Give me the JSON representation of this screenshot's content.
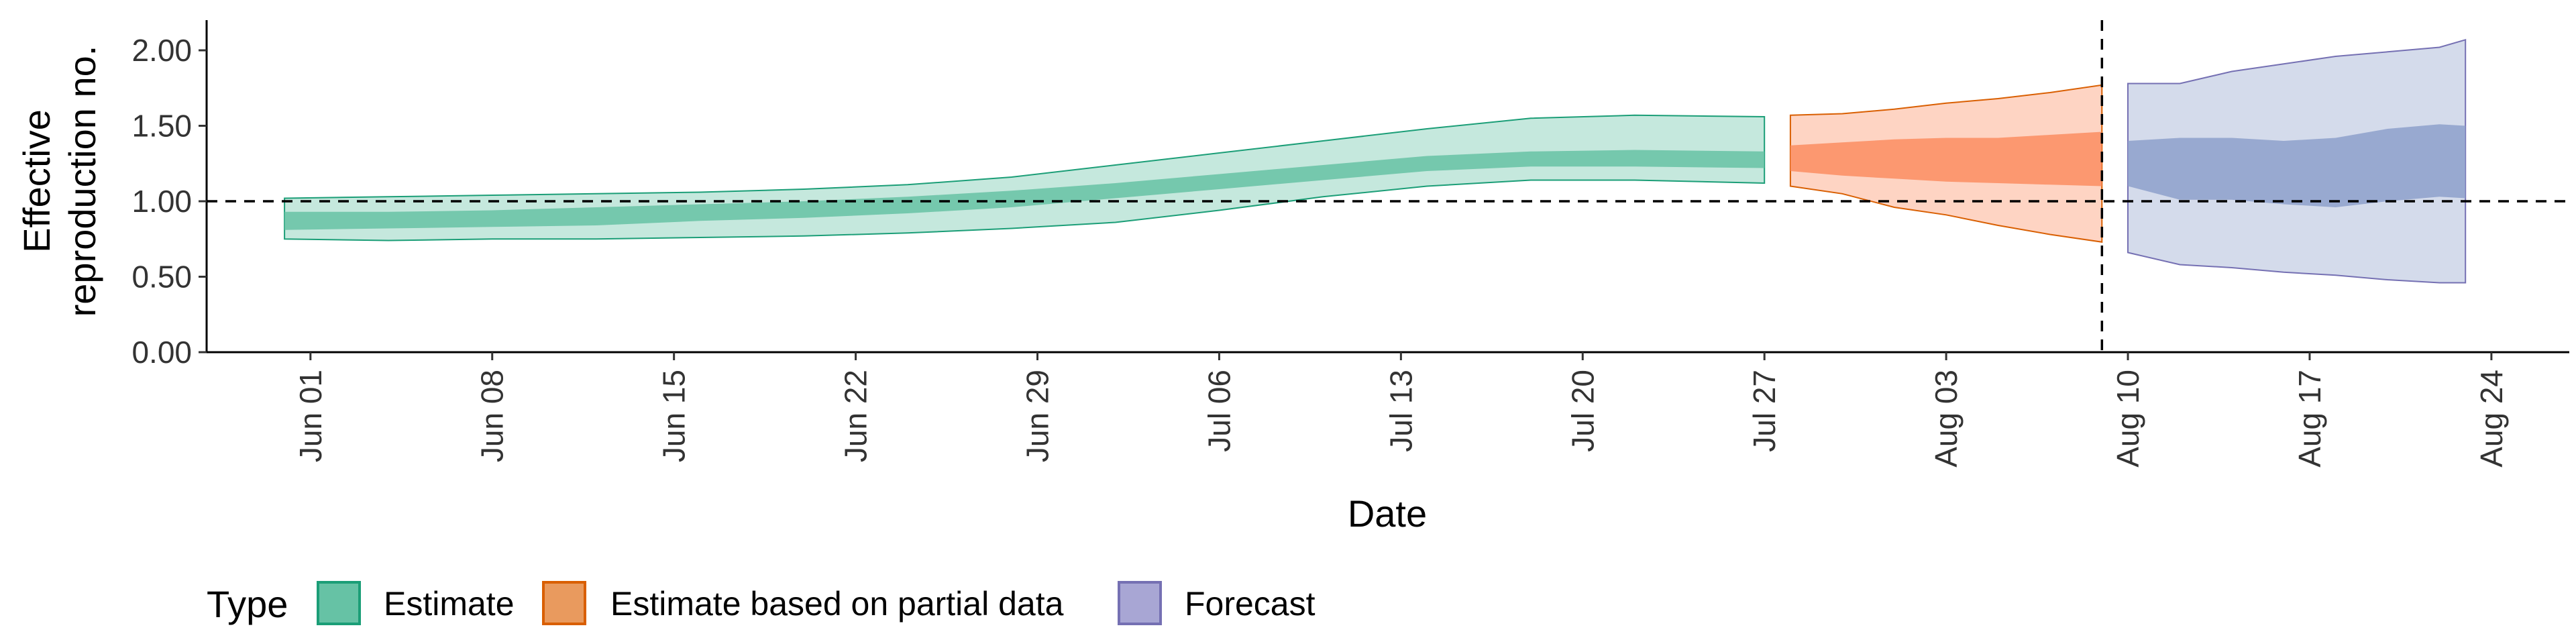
{
  "chart_data": {
    "type": "area",
    "xlabel": "Date",
    "ylabel_lines": [
      "Effective",
      "reproduction no."
    ],
    "ylim": [
      0,
      2.2
    ],
    "yticks": [
      0,
      0.5,
      1,
      1.5,
      2
    ],
    "ytick_labels": [
      "0.00",
      "0.50",
      "1.00",
      "1.50",
      "2.00"
    ],
    "xlim": [
      "2020-05-28",
      "2020-08-27"
    ],
    "xticks": [
      "2020-06-01",
      "2020-06-08",
      "2020-06-15",
      "2020-06-22",
      "2020-06-29",
      "2020-07-06",
      "2020-07-13",
      "2020-07-20",
      "2020-07-27",
      "2020-08-03",
      "2020-08-10",
      "2020-08-17",
      "2020-08-24"
    ],
    "xtick_labels": [
      "Jun 01",
      "Jun 08",
      "Jun 15",
      "Jun 22",
      "Jun 29",
      "Jul 06",
      "Jul 13",
      "Jul 20",
      "Jul 27",
      "Aug 03",
      "Aug 10",
      "Aug 17",
      "Aug 24"
    ],
    "hline": 1.0,
    "vline": "2020-08-09",
    "series": [
      {
        "name": "Estimate",
        "fill": "#66c2a5",
        "stroke": "#1b9e77",
        "x": [
          "2020-05-31",
          "2020-06-04",
          "2020-06-08",
          "2020-06-12",
          "2020-06-16",
          "2020-06-20",
          "2020-06-24",
          "2020-06-28",
          "2020-07-02",
          "2020-07-06",
          "2020-07-10",
          "2020-07-14",
          "2020-07-18",
          "2020-07-22",
          "2020-07-27"
        ],
        "outer_low": [
          0.75,
          0.74,
          0.75,
          0.75,
          0.76,
          0.77,
          0.79,
          0.82,
          0.86,
          0.94,
          1.03,
          1.1,
          1.14,
          1.14,
          1.12
        ],
        "inner_low": [
          0.81,
          0.82,
          0.83,
          0.84,
          0.87,
          0.89,
          0.92,
          0.96,
          1.02,
          1.08,
          1.14,
          1.2,
          1.23,
          1.23,
          1.22
        ],
        "inner_high": [
          0.93,
          0.93,
          0.94,
          0.96,
          0.98,
          1.0,
          1.03,
          1.07,
          1.12,
          1.18,
          1.24,
          1.3,
          1.33,
          1.34,
          1.33
        ],
        "outer_high": [
          1.02,
          1.03,
          1.04,
          1.05,
          1.06,
          1.08,
          1.11,
          1.16,
          1.24,
          1.32,
          1.4,
          1.48,
          1.55,
          1.57,
          1.56
        ]
      },
      {
        "name": "Estimate based on partial data",
        "fill": "#fc8d62",
        "stroke": "#d95f02",
        "x": [
          "2020-07-28",
          "2020-07-30",
          "2020-08-01",
          "2020-08-03",
          "2020-08-05",
          "2020-08-07",
          "2020-08-09"
        ],
        "outer_low": [
          1.1,
          1.05,
          0.96,
          0.91,
          0.84,
          0.78,
          0.73
        ],
        "inner_low": [
          1.2,
          1.17,
          1.15,
          1.13,
          1.12,
          1.11,
          1.1
        ],
        "inner_high": [
          1.37,
          1.39,
          1.41,
          1.42,
          1.42,
          1.44,
          1.46
        ],
        "outer_high": [
          1.57,
          1.58,
          1.61,
          1.65,
          1.68,
          1.72,
          1.77
        ]
      },
      {
        "name": "Forecast",
        "fill": "#8da0cb",
        "stroke": "#7570b3",
        "x": [
          "2020-08-10",
          "2020-08-12",
          "2020-08-14",
          "2020-08-16",
          "2020-08-18",
          "2020-08-20",
          "2020-08-22",
          "2020-08-23"
        ],
        "outer_low": [
          0.66,
          0.58,
          0.56,
          0.53,
          0.51,
          0.48,
          0.46,
          0.46
        ],
        "inner_low": [
          1.1,
          1.01,
          1.01,
          0.98,
          0.96,
          1.0,
          1.03,
          1.02
        ],
        "inner_high": [
          1.4,
          1.42,
          1.42,
          1.4,
          1.42,
          1.48,
          1.51,
          1.5
        ],
        "outer_high": [
          1.78,
          1.78,
          1.86,
          1.91,
          1.96,
          1.99,
          2.02,
          2.07
        ]
      }
    ],
    "legend": {
      "title": "Type",
      "position": "bottom-left",
      "items": [
        "Estimate",
        "Estimate based on partial data",
        "Forecast"
      ]
    }
  }
}
